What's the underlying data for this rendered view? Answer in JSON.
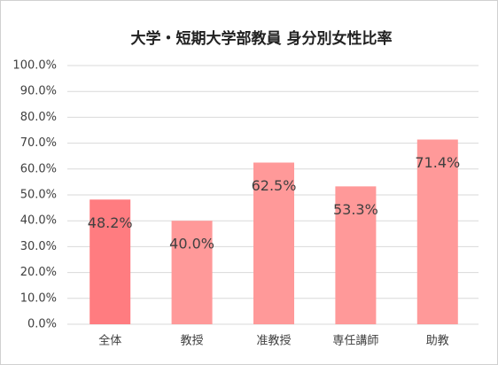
{
  "chart_data": {
    "type": "bar",
    "title": "大学・短期大学部教員 身分別女性比率",
    "categories": [
      "全体",
      "教授",
      "准教授",
      "専任講師",
      "助教"
    ],
    "values": [
      48.2,
      40.0,
      62.5,
      53.3,
      71.4
    ],
    "value_labels": [
      "48.2%",
      "40.0%",
      "62.5%",
      "53.3%",
      "71.4%"
    ],
    "colors": [
      "#ff7c80",
      "#ff9999",
      "#ff9999",
      "#ff9999",
      "#ff9999"
    ],
    "ylim": [
      0,
      100
    ],
    "yticks": [
      {
        "value": 0,
        "label": "0.0%"
      },
      {
        "value": 10,
        "label": "10.0%"
      },
      {
        "value": 20,
        "label": "20.0%"
      },
      {
        "value": 30,
        "label": "30.0%"
      },
      {
        "value": 40,
        "label": "40.0%"
      },
      {
        "value": 50,
        "label": "50.0%"
      },
      {
        "value": 60,
        "label": "60.0%"
      },
      {
        "value": 70,
        "label": "70.0%"
      },
      {
        "value": 80,
        "label": "80.0%"
      },
      {
        "value": 90,
        "label": "90.0%"
      },
      {
        "value": 100,
        "label": "100.0%"
      }
    ],
    "grid": true
  }
}
